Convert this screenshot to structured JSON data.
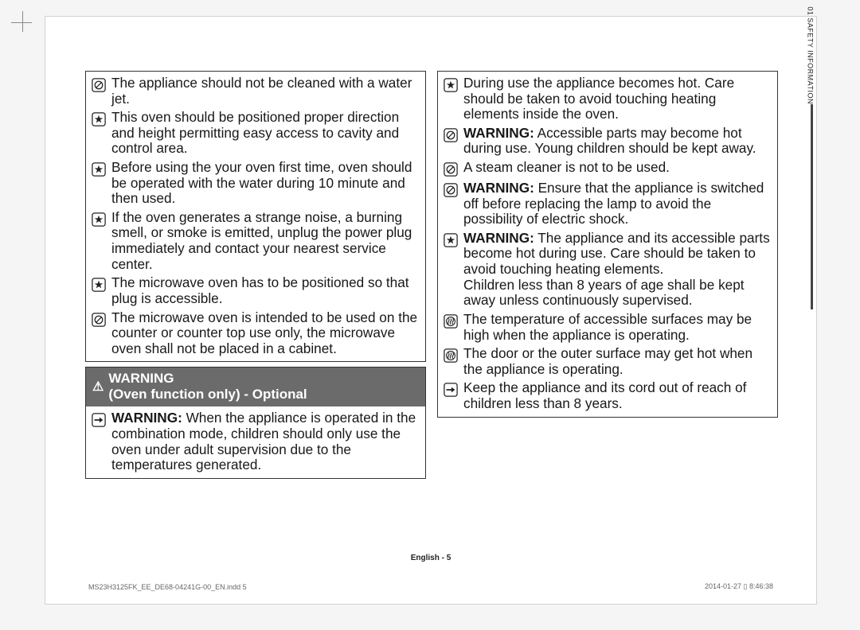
{
  "side_tab": "01 SAFETY INFORMATION",
  "footer_center": "English - 5",
  "footer_left": "MS23H3125FK_EE_DE68-04241G-00_EN.indd   5",
  "footer_right": "2014-01-27   ▯ 8:46:38",
  "colors": {
    "heading_bg": "#6b6b6b",
    "heading_fg": "#ffffff",
    "text": "#181818",
    "page_bg": "#ffffff"
  },
  "icons": {
    "prohibit": "prohibit-icon",
    "star": "star-box-icon",
    "arrow": "arrow-box-icon",
    "hot": "hot-surface-icon"
  },
  "left_col": {
    "block1": {
      "items": [
        {
          "icon": "prohibit",
          "text": "The appliance should not be cleaned with a water jet."
        },
        {
          "icon": "star",
          "text": "This oven should be positioned proper direction and height permitting easy access to cavity and control area."
        },
        {
          "icon": "star",
          "text": "Before using the your oven first time, oven should be operated with the water during 10 minute and then used."
        },
        {
          "icon": "star",
          "text": "If the oven generates a strange noise, a burning smell, or smoke is emitted, unplug the power plug immediately and contact your nearest service center."
        },
        {
          "icon": "star",
          "text": "The microwave oven has to be positioned so that plug is accessible."
        },
        {
          "icon": "prohibit",
          "text": "The microwave oven is intended to be used on the counter or counter top use only, the microwave oven shall not be placed in a cabinet."
        }
      ]
    },
    "block2": {
      "heading_line1": "WARNING",
      "heading_line2": "(Oven function only) - Optional",
      "items": [
        {
          "icon": "arrow",
          "bold": "WARNING:",
          "text": " When the appliance is operated in the combination mode, children should only use the oven under adult supervision due to the temperatures generated."
        }
      ]
    }
  },
  "right_col": {
    "block1": {
      "items": [
        {
          "icon": "star",
          "text": "During use the appliance becomes hot. Care should be taken to avoid touching heating elements inside the oven."
        },
        {
          "icon": "prohibit",
          "bold": "WARNING:",
          "text": " Accessible parts may become hot during use. Young children should be kept away."
        },
        {
          "icon": "prohibit",
          "text": "A steam cleaner is not to be used."
        },
        {
          "icon": "prohibit",
          "bold": "WARNING:",
          "text": " Ensure that the appliance is switched off before replacing the lamp to avoid the possibility of electric shock."
        },
        {
          "icon": "star",
          "bold": "WARNING:",
          "text": " The appliance and its accessible parts become hot during use. Care should be taken to avoid touching heating elements.\nChildren less than 8 years of age shall be kept away unless continuously supervised."
        },
        {
          "icon": "hot",
          "text": "The temperature of accessible surfaces may be high when the appliance is operating."
        },
        {
          "icon": "hot",
          "text": "The door or the outer surface may get hot when the appliance is operating."
        },
        {
          "icon": "arrow",
          "text": "Keep the appliance and its cord out of reach of children less than 8 years."
        }
      ]
    }
  }
}
